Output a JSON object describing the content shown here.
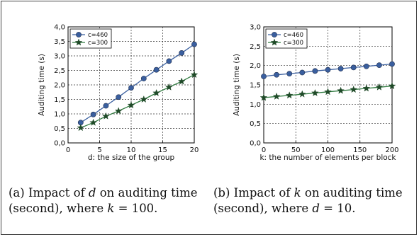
{
  "captions": [
    [
      "(a) Impact of ",
      "d",
      " on auditing time",
      "(second), where ",
      "k",
      " = 100."
    ],
    [
      "(b) Impact of ",
      "k",
      " on auditing time",
      "(second), where ",
      "d",
      " = 10."
    ]
  ],
  "chart_data": [
    {
      "type": "line",
      "title": "",
      "xlabel": "d: the size of the group",
      "ylabel": "Auditing time (s)",
      "xlim": [
        0,
        20
      ],
      "ylim": [
        0,
        4
      ],
      "xticks": [
        "0",
        "5",
        "10",
        "15",
        "20"
      ],
      "yticks": [
        "0,0",
        "0,5",
        "1,0",
        "1,5",
        "2,0",
        "2,5",
        "3,0",
        "3,5",
        "4,0"
      ],
      "grid": true,
      "legend": "top-left",
      "series": [
        {
          "name": "c=460",
          "marker": "circle",
          "color": "#3a5f9f",
          "x": [
            2,
            4,
            6,
            8,
            10,
            12,
            14,
            16,
            18,
            20
          ],
          "y": [
            0.7,
            0.98,
            1.28,
            1.58,
            1.9,
            2.22,
            2.52,
            2.82,
            3.1,
            3.4
          ]
        },
        {
          "name": "c=300",
          "marker": "star",
          "color": "#2f7a3f",
          "x": [
            2,
            4,
            6,
            8,
            10,
            12,
            14,
            16,
            18,
            20
          ],
          "y": [
            0.52,
            0.7,
            0.92,
            1.1,
            1.3,
            1.5,
            1.72,
            1.92,
            2.12,
            2.35
          ]
        }
      ]
    },
    {
      "type": "line",
      "title": "",
      "xlabel": "k: the number of elements per block",
      "ylabel": "Auditing time (s)",
      "xlim": [
        0,
        200
      ],
      "ylim": [
        0,
        3
      ],
      "xticks": [
        "0",
        "50",
        "100",
        "150",
        "200"
      ],
      "yticks": [
        "0,0",
        "0,5",
        "1,0",
        "1,5",
        "2,0",
        "2,5",
        "3,0"
      ],
      "grid": true,
      "legend": "top-left",
      "series": [
        {
          "name": "c=460",
          "marker": "circle",
          "color": "#3a5f9f",
          "x": [
            0,
            20,
            40,
            60,
            80,
            100,
            120,
            140,
            160,
            180,
            200
          ],
          "y": [
            1.72,
            1.76,
            1.79,
            1.82,
            1.86,
            1.89,
            1.92,
            1.95,
            1.98,
            2.01,
            2.04
          ]
        },
        {
          "name": "c=300",
          "marker": "star",
          "color": "#2f7a3f",
          "x": [
            0,
            20,
            40,
            60,
            80,
            100,
            120,
            140,
            160,
            180,
            200
          ],
          "y": [
            1.17,
            1.2,
            1.23,
            1.26,
            1.29,
            1.32,
            1.35,
            1.38,
            1.41,
            1.44,
            1.47
          ]
        }
      ]
    }
  ]
}
